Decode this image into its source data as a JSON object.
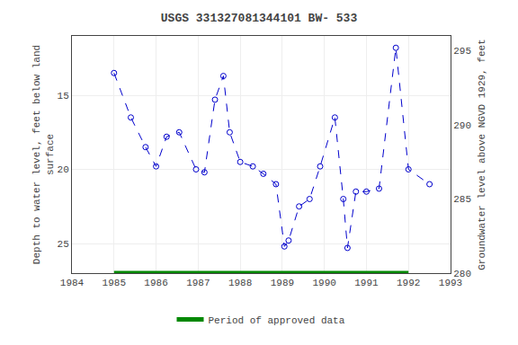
{
  "chart_data": {
    "type": "line",
    "title": "USGS 331327081344101 BW- 533",
    "ylabel": "Depth to water level, feet below land\nsurface",
    "y2label": "Groundwater level above NGVD 1929, feet",
    "x": [
      1985.0,
      1985.4,
      1985.75,
      1986.0,
      1986.25,
      1986.55,
      1986.95,
      1987.15,
      1987.4,
      1987.6,
      1987.75,
      1988.0,
      1988.3,
      1988.55,
      1988.85,
      1989.05,
      1989.15,
      1989.4,
      1989.65,
      1989.9,
      1990.25,
      1990.45,
      1990.55,
      1990.75,
      1991.0,
      1991.3,
      1991.7,
      1992.0,
      1992.5
    ],
    "series": [
      {
        "values": [
          13.5,
          16.5,
          18.5,
          19.8,
          17.8,
          17.5,
          20.0,
          20.2,
          15.3,
          13.7,
          17.5,
          19.5,
          19.8,
          20.3,
          21.0,
          25.2,
          24.8,
          22.5,
          22.0,
          19.8,
          16.5,
          22.0,
          25.3,
          21.5,
          21.5,
          21.3,
          11.8,
          20.0,
          21.0
        ],
        "color": "#0000CC",
        "marker": "circle-open",
        "line_style": "dash"
      }
    ],
    "xlim": [
      1984,
      1993
    ],
    "xticks": [
      1984,
      1985,
      1986,
      1987,
      1988,
      1989,
      1990,
      1991,
      1992,
      1993
    ],
    "ylim": [
      27,
      11
    ],
    "yticks": [
      15,
      20,
      25
    ],
    "y2lim": [
      280,
      296
    ],
    "y2ticks": [
      280,
      285,
      290,
      295
    ],
    "grid": true,
    "legend": "bottom",
    "approved_period": {
      "name": "Period of approved data",
      "color": "#008800",
      "x": [
        1985.0,
        1992.0
      ]
    }
  }
}
